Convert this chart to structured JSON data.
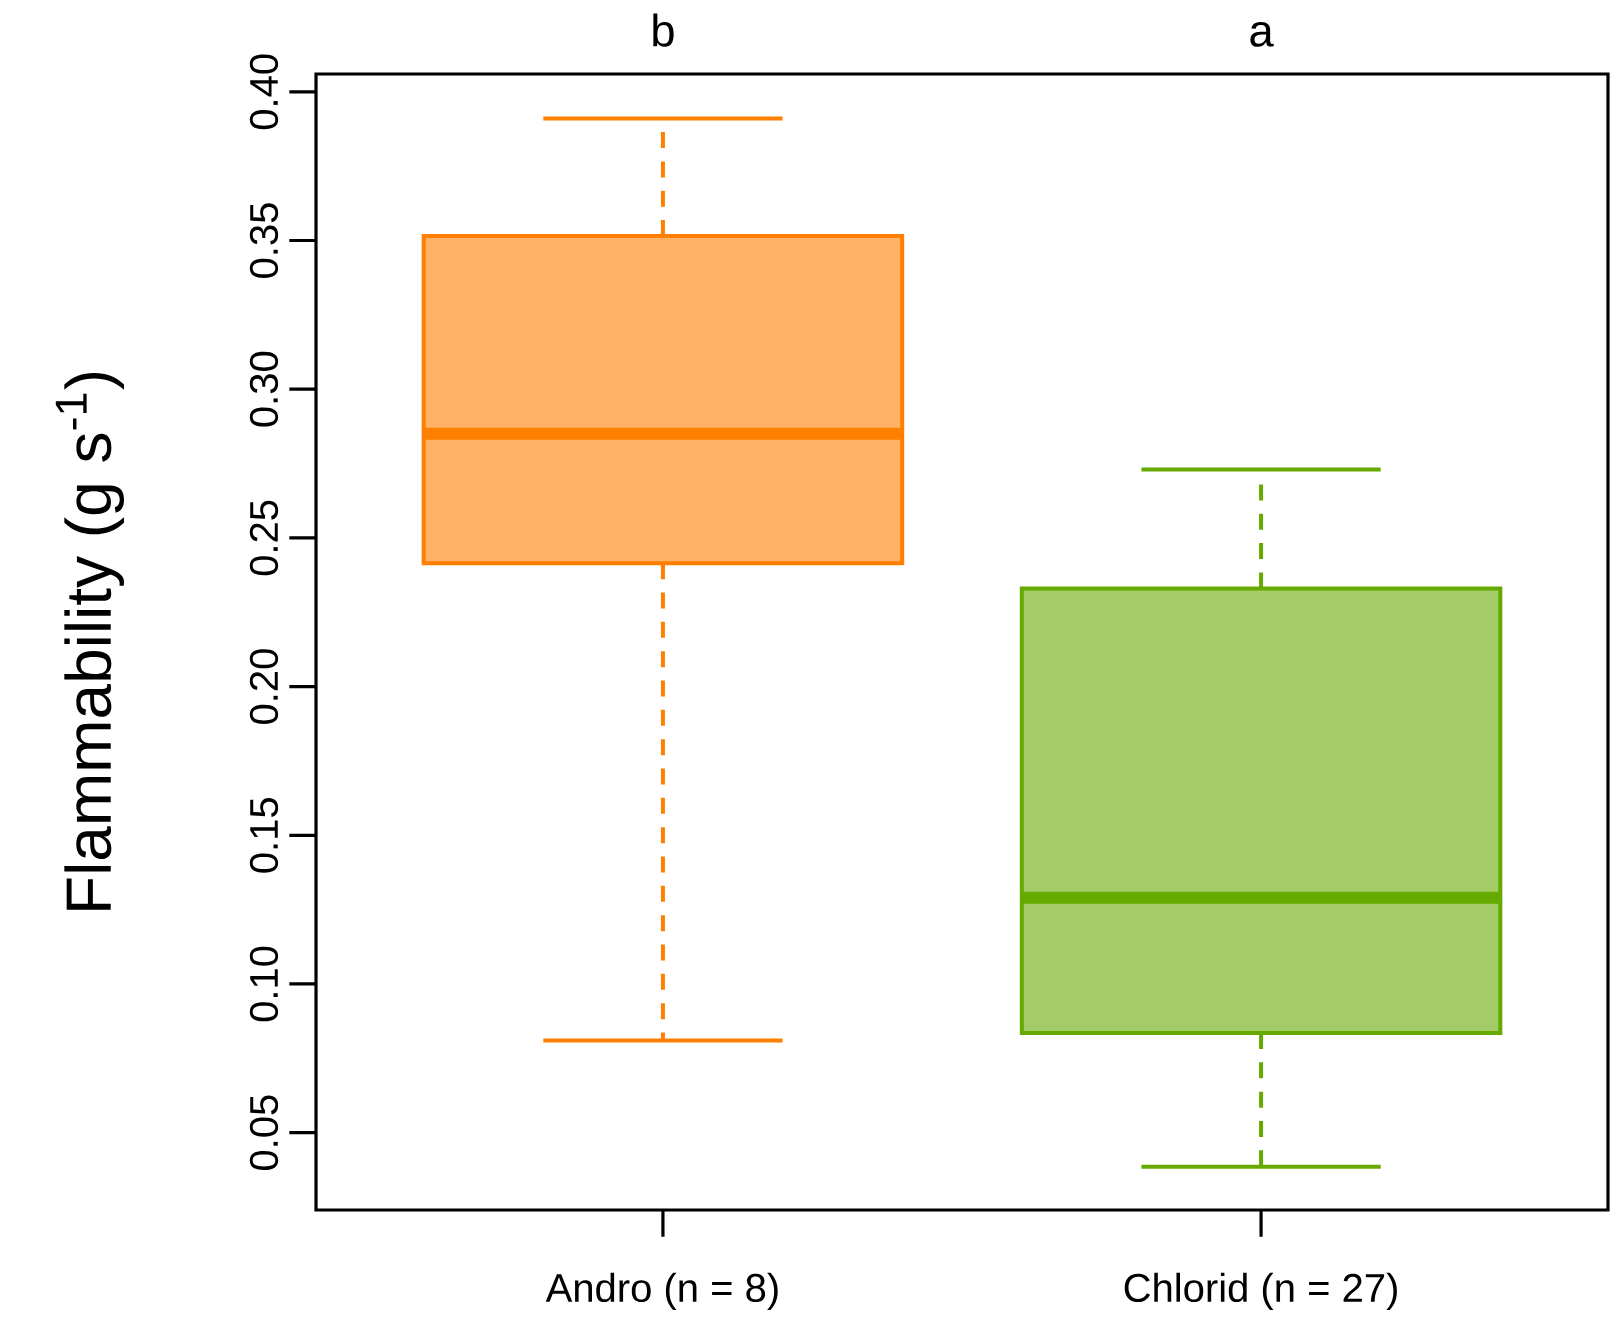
{
  "chart_data": {
    "type": "box",
    "ylabel": "Flammability (g s$^{-1}$)",
    "categories": [
      "Andro (n = 8)",
      "Chlorid (n = 27)"
    ],
    "boxes": [
      {
        "low": 0.081,
        "q1": 0.2415,
        "median": 0.285,
        "q3": 0.3515,
        "high": 0.391
      },
      {
        "low": 0.0385,
        "q1": 0.0835,
        "median": 0.129,
        "q3": 0.233,
        "high": 0.273
      }
    ],
    "colors": [
      "#ff7f00",
      "#66aa00"
    ],
    "annotations": [
      "b",
      "a"
    ],
    "ylim": [
      0.024,
      0.406
    ],
    "yticks": [
      {
        "value": 0.05,
        "label": "0.05"
      },
      {
        "value": 0.1,
        "label": "0.10"
      },
      {
        "value": 0.15,
        "label": "0.15"
      },
      {
        "value": 0.2,
        "label": "0.20"
      },
      {
        "value": 0.25,
        "label": "0.25"
      },
      {
        "value": 0.3,
        "label": "0.30"
      },
      {
        "value": 0.35,
        "label": "0.35"
      },
      {
        "value": 0.4,
        "label": "0.40"
      }
    ],
    "grid": false
  }
}
